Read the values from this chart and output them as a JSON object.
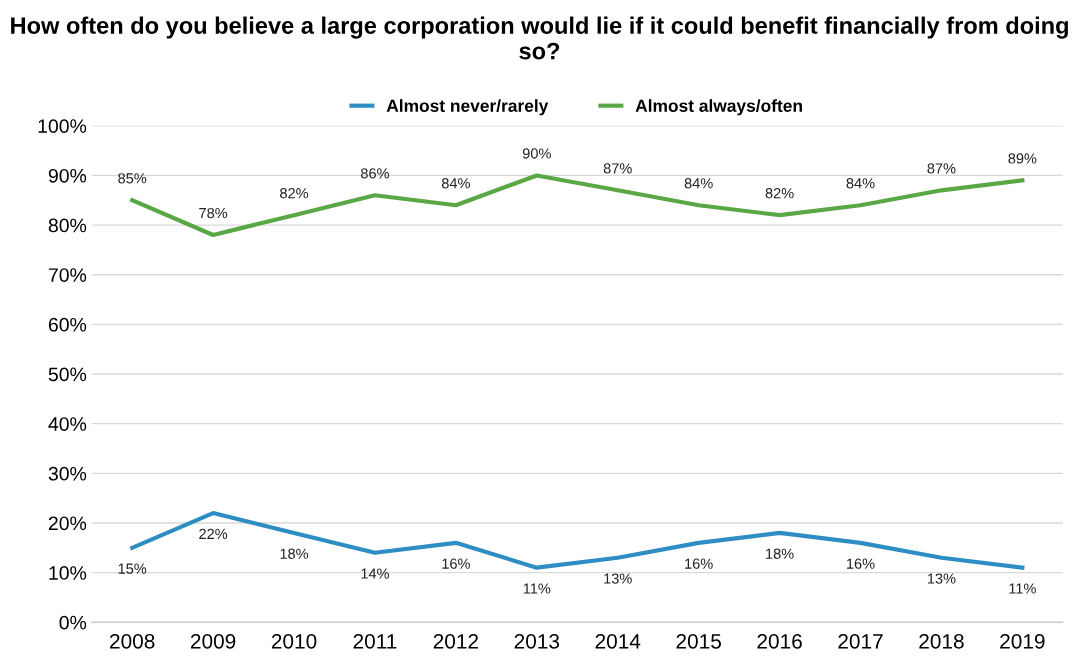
{
  "chart_data": {
    "type": "line",
    "title": "How often do you believe a large corporation would lie if it could benefit financially from doing so?",
    "categories": [
      "2008",
      "2009",
      "2010",
      "2011",
      "2012",
      "2013",
      "2014",
      "2015",
      "2016",
      "2017",
      "2018",
      "2019"
    ],
    "series": [
      {
        "name": "Almost never/rarely",
        "color": "#2e8ec4",
        "values": [
          15,
          22,
          18,
          14,
          16,
          11,
          13,
          16,
          18,
          16,
          13,
          11
        ],
        "value_labels": [
          "15%",
          "22%",
          "18%",
          "14%",
          "16%",
          "11%",
          "13%",
          "16%",
          "18%",
          "16%",
          "13%",
          "11%"
        ]
      },
      {
        "name": "Almost always/often",
        "color": "#5aa845",
        "values": [
          85,
          78,
          82,
          86,
          84,
          90,
          87,
          84,
          82,
          84,
          87,
          89
        ],
        "value_labels": [
          "85%",
          "78%",
          "82%",
          "86%",
          "84%",
          "90%",
          "87%",
          "84%",
          "82%",
          "84%",
          "87%",
          "89%"
        ]
      }
    ],
    "ylim": [
      0,
      100
    ],
    "yticks": [
      {
        "value": 0,
        "label": "0%"
      },
      {
        "value": 10,
        "label": "10%"
      },
      {
        "value": 20,
        "label": "20%"
      },
      {
        "value": 30,
        "label": "30%"
      },
      {
        "value": 40,
        "label": "40%"
      },
      {
        "value": 50,
        "label": "50%"
      },
      {
        "value": 60,
        "label": "60%"
      },
      {
        "value": 70,
        "label": "70%"
      },
      {
        "value": 80,
        "label": "80%"
      },
      {
        "value": 90,
        "label": "90%"
      },
      {
        "value": 100,
        "label": "100%"
      }
    ],
    "grid": "y",
    "legend": "top",
    "marker": "none",
    "line_style": "solid"
  }
}
